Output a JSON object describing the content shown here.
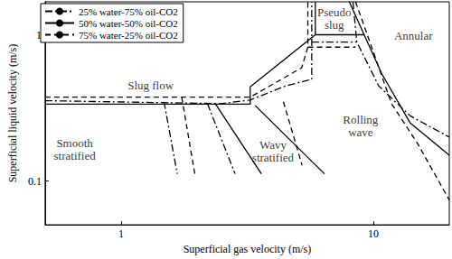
{
  "chart_data": {
    "type": "line",
    "x_label": "Superficial gas velocity (m/s)",
    "y_label": "Superficial liquid velocity (m/s)",
    "log": true,
    "grid": false,
    "legend": "upper left",
    "xlim": [
      0.5,
      20
    ],
    "ylim": [
      0.05,
      1.7
    ],
    "xticks": [
      1,
      10
    ],
    "yticks": [
      0.1,
      1
    ],
    "series": [
      {
        "name": "25% water-75% oil-CO2",
        "color": "#000000",
        "line_style": "dashdot",
        "x": [
          0.5,
          2.5,
          3.25,
          4.5,
          5.7,
          5.7,
          null,
          5.7,
          8.6,
          null,
          8.3,
          8.6,
          10.5,
          14,
          20,
          null,
          1.48,
          1.67,
          null,
          2.2,
          2.83
        ],
        "values": [
          0.356,
          0.34,
          0.36,
          0.45,
          0.5,
          1.7,
          null,
          0.9,
          0.9,
          null,
          1.7,
          0.9,
          0.45,
          0.28,
          0.2,
          null,
          0.35,
          0.112,
          null,
          0.34,
          0.112
        ]
      },
      {
        "name": "50% water-50% oil-CO2",
        "color": "#000000",
        "line_style": "solid",
        "x": [
          0.5,
          3.25,
          3.25,
          5.89,
          5.89,
          null,
          5.89,
          9.2,
          null,
          8.03,
          10.8,
          14,
          20,
          null,
          2.37,
          3.6,
          null,
          3.4,
          6.4
        ],
        "values": [
          0.337,
          0.337,
          0.443,
          1.01,
          1.7,
          null,
          1.01,
          1.01,
          null,
          1.7,
          0.545,
          0.25,
          0.15,
          null,
          0.337,
          0.112,
          null,
          0.33,
          0.112
        ]
      },
      {
        "name": "75% water-25% oil-CO2",
        "color": "#000000",
        "line_style": "dashed",
        "x": [
          0.5,
          3.25,
          5.2,
          5.5,
          5.5,
          null,
          5.5,
          8.5,
          null,
          8.5,
          9.2,
          11.8,
          15,
          20,
          null,
          1.74,
          1.96,
          null,
          4.4,
          5.22
        ],
        "values": [
          0.376,
          0.376,
          0.6,
          0.83,
          1.7,
          null,
          0.83,
          0.83,
          null,
          1.7,
          1.16,
          0.34,
          0.18,
          0.074,
          null,
          0.376,
          0.112,
          null,
          0.35,
          0.128
        ]
      }
    ],
    "annotations": [
      {
        "text": "Slug flow",
        "x": 1.31,
        "y": 0.456
      },
      {
        "text": "Pseudo\nslug",
        "x": 7.0,
        "y": 1.3
      },
      {
        "text": "Annular",
        "x": 14.4,
        "y": 0.99
      },
      {
        "text": "Rolling\nwave",
        "x": 8.9,
        "y": 0.238
      },
      {
        "text": "Smooth\nstratified",
        "x": 0.655,
        "y": 0.164
      },
      {
        "text": "Wavy\nstratified",
        "x": 4.0,
        "y": 0.16
      }
    ]
  }
}
